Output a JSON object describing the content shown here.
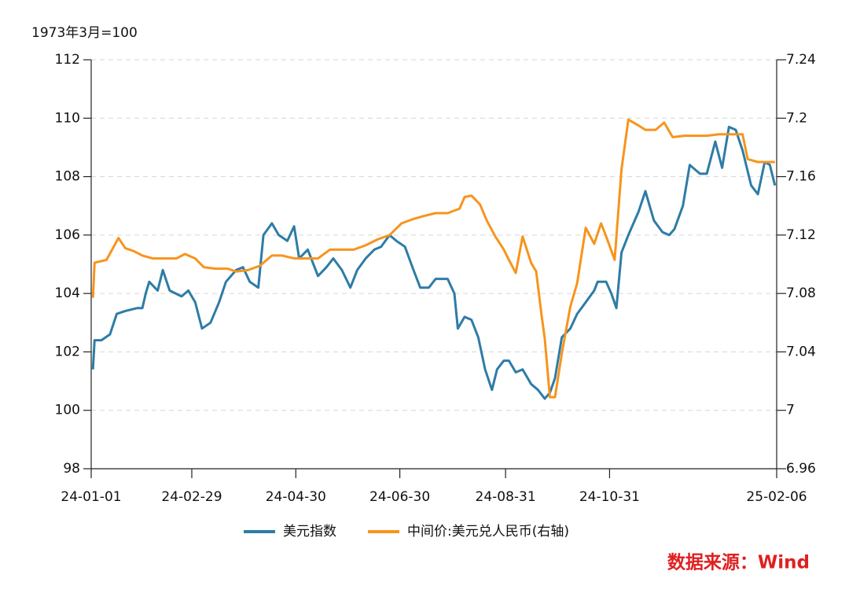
{
  "chart_data": {
    "type": "line",
    "y_axis_label": "1973年3月=100",
    "source": "数据来源：Wind",
    "xlim": [
      "24-01-01",
      "25-02-06"
    ],
    "xticks": [
      "24-01-01",
      "24-02-29",
      "24-04-30",
      "24-06-30",
      "24-08-31",
      "24-10-31",
      "25-02-06"
    ],
    "ylim": [
      98,
      112
    ],
    "yticks": [
      98,
      100,
      102,
      104,
      106,
      108,
      110,
      112
    ],
    "y2lim": [
      6.96,
      7.24
    ],
    "y2ticks": [
      6.96,
      7,
      7.04,
      7.08,
      7.12,
      7.16,
      7.2,
      7.24
    ],
    "grid": true,
    "legend": "bottom",
    "series": [
      {
        "name": "美元指数",
        "color": "#2e7ca6",
        "x": [
          "24-01-02",
          "24-01-03",
          "24-01-07",
          "24-01-12",
          "24-01-16",
          "24-01-21",
          "24-01-28",
          "24-01-31",
          "24-02-02",
          "24-02-04",
          "24-02-09",
          "24-02-12",
          "24-02-16",
          "24-02-23",
          "24-02-27",
          "24-03-02",
          "24-03-06",
          "24-03-11",
          "24-03-16",
          "24-03-20",
          "24-03-26",
          "24-03-30",
          "24-04-03",
          "24-04-08",
          "24-04-11",
          "24-04-16",
          "24-04-20",
          "24-04-25",
          "24-04-29",
          "24-05-02",
          "24-05-07",
          "24-05-13",
          "24-05-18",
          "24-05-22",
          "24-05-27",
          "24-06-01",
          "24-06-05",
          "24-06-10",
          "24-06-15",
          "24-06-19",
          "24-06-24",
          "24-06-28",
          "24-07-03",
          "24-07-08",
          "24-07-12",
          "24-07-17",
          "24-07-21",
          "24-07-28",
          "24-08-01",
          "24-08-03",
          "24-08-07",
          "24-08-11",
          "24-08-15",
          "24-08-19",
          "24-08-23",
          "24-08-26",
          "24-08-30",
          "24-09-02",
          "24-09-06",
          "24-09-10",
          "24-09-15",
          "24-09-19",
          "24-09-23",
          "24-09-26",
          "24-09-29",
          "24-10-03",
          "24-10-08",
          "24-10-12",
          "24-10-17",
          "24-10-22",
          "24-10-24",
          "24-10-29",
          "24-11-01",
          "24-11-04",
          "24-11-07",
          "24-11-11",
          "24-11-17",
          "24-11-21",
          "24-11-26",
          "24-12-01",
          "24-12-05",
          "24-12-08",
          "24-12-13",
          "24-12-17",
          "24-12-23",
          "24-12-27",
          "25-01-01",
          "25-01-05",
          "25-01-09",
          "25-01-13",
          "25-01-17",
          "25-01-22",
          "25-01-26",
          "25-01-30",
          "25-02-02",
          "25-02-05"
        ],
        "values": [
          101.4,
          102.4,
          102.4,
          102.6,
          103.3,
          103.4,
          103.5,
          103.5,
          104.0,
          104.4,
          104.1,
          104.8,
          104.1,
          103.9,
          104.1,
          103.7,
          102.8,
          103.0,
          103.7,
          104.4,
          104.8,
          104.9,
          104.4,
          104.2,
          106.0,
          106.4,
          106.0,
          105.8,
          106.3,
          105.2,
          105.5,
          104.6,
          104.9,
          105.2,
          104.8,
          104.2,
          104.8,
          105.2,
          105.5,
          105.6,
          106.0,
          105.8,
          105.6,
          104.8,
          104.2,
          104.2,
          104.5,
          104.5,
          104.0,
          102.8,
          103.2,
          103.1,
          102.5,
          101.4,
          100.7,
          101.4,
          101.7,
          101.7,
          101.3,
          101.4,
          100.9,
          100.7,
          100.4,
          100.6,
          101.1,
          102.5,
          102.8,
          103.3,
          103.7,
          104.1,
          104.4,
          104.4,
          104.0,
          103.5,
          105.4,
          106.0,
          106.8,
          107.5,
          106.5,
          106.1,
          106.0,
          106.2,
          107.0,
          108.4,
          108.1,
          108.1,
          109.2,
          108.3,
          109.7,
          109.6,
          108.9,
          107.7,
          107.4,
          108.5,
          108.4,
          107.7
        ]
      },
      {
        "name": "中间价:美元兑人民币(右轴)",
        "color": "#f7941d",
        "axis": "y2",
        "x": [
          "24-01-02",
          "24-01-03",
          "24-01-10",
          "24-01-17",
          "24-01-21",
          "24-01-26",
          "24-01-31",
          "24-02-06",
          "24-02-13",
          "24-02-20",
          "24-02-25",
          "24-03-02",
          "24-03-07",
          "24-03-14",
          "24-03-21",
          "24-03-26",
          "24-04-02",
          "24-04-09",
          "24-04-16",
          "24-04-22",
          "24-04-29",
          "24-05-06",
          "24-05-13",
          "24-05-20",
          "24-05-27",
          "24-06-03",
          "24-06-10",
          "24-06-17",
          "24-06-24",
          "24-07-01",
          "24-07-08",
          "24-07-14",
          "24-07-21",
          "24-07-28",
          "24-08-04",
          "24-08-07",
          "24-08-11",
          "24-08-16",
          "24-08-20",
          "24-08-25",
          "24-08-30",
          "24-09-02",
          "24-09-06",
          "24-09-10",
          "24-09-15",
          "24-09-18",
          "24-09-21",
          "24-09-23",
          "24-09-26",
          "24-09-29",
          "24-10-03",
          "24-10-08",
          "24-10-12",
          "24-10-17",
          "24-10-22",
          "24-10-26",
          "24-10-29",
          "24-11-03",
          "24-11-07",
          "24-11-11",
          "24-11-17",
          "24-11-21",
          "24-11-27",
          "24-12-02",
          "24-12-07",
          "24-12-14",
          "24-12-21",
          "24-12-27",
          "25-01-03",
          "25-01-10",
          "25-01-17",
          "25-01-20",
          "25-01-26",
          "25-02-02",
          "25-02-05"
        ],
        "values": [
          7.077,
          7.101,
          7.103,
          7.118,
          7.111,
          7.109,
          7.106,
          7.104,
          7.104,
          7.104,
          7.107,
          7.104,
          7.098,
          7.097,
          7.097,
          7.095,
          7.096,
          7.099,
          7.106,
          7.106,
          7.104,
          7.104,
          7.104,
          7.11,
          7.11,
          7.11,
          7.113,
          7.117,
          7.12,
          7.128,
          7.131,
          7.133,
          7.135,
          7.135,
          7.138,
          7.146,
          7.147,
          7.141,
          7.13,
          7.119,
          7.11,
          7.103,
          7.094,
          7.119,
          7.101,
          7.095,
          7.066,
          7.049,
          7.009,
          7.009,
          7.039,
          7.071,
          7.087,
          7.125,
          7.114,
          7.128,
          7.119,
          7.103,
          7.165,
          7.199,
          7.195,
          7.192,
          7.192,
          7.197,
          7.187,
          7.188,
          7.188,
          7.188,
          7.189,
          7.189,
          7.189,
          7.172,
          7.17,
          7.17,
          7.17
        ]
      }
    ]
  }
}
